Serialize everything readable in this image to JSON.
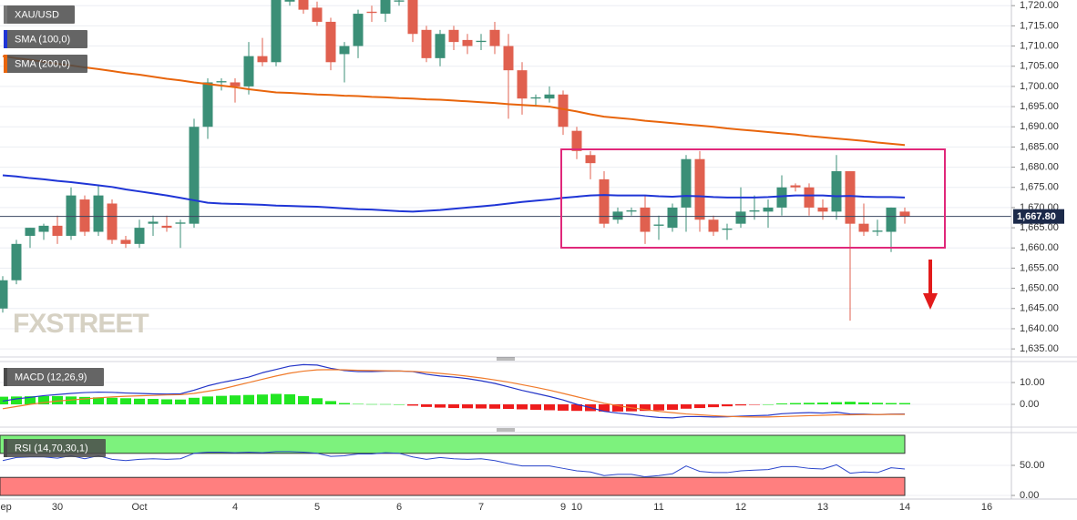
{
  "chart_data": [
    {
      "type": "candlestick",
      "watermark": "FXSTREET",
      "categories": [
        "Sep",
        null,
        null,
        null,
        "30",
        null,
        null,
        null,
        null,
        null,
        "Oct",
        null,
        null,
        null,
        null,
        null,
        null,
        "4",
        null,
        null,
        null,
        null,
        null,
        "5",
        null,
        null,
        null,
        null,
        null,
        "6",
        null,
        null,
        null,
        null,
        null,
        "7",
        null,
        null,
        null,
        null,
        null,
        "9",
        "10",
        null,
        null,
        null,
        null,
        null,
        "11",
        null,
        null,
        null,
        null,
        null,
        "12",
        null,
        null,
        null,
        null,
        null,
        "13",
        null,
        null,
        null,
        null,
        null,
        "14",
        null,
        null,
        null,
        null,
        null,
        "16"
      ],
      "ylim": [
        1633,
        1721.4
      ],
      "yticks": [
        {
          "value": 1635,
          "label": "1,635.00"
        },
        {
          "value": 1640,
          "label": "1,640.00"
        },
        {
          "value": 1645,
          "label": "1,645.00"
        },
        {
          "value": 1650,
          "label": "1,650.00"
        },
        {
          "value": 1655,
          "label": "1,655.00"
        },
        {
          "value": 1660,
          "label": "1,660.00"
        },
        {
          "value": 1665,
          "label": "1,665.00"
        },
        {
          "value": 1670,
          "label": "1,670.00"
        },
        {
          "value": 1675,
          "label": "1,675.00"
        },
        {
          "value": 1680,
          "label": "1,680.00"
        },
        {
          "value": 1685,
          "label": "1,685.00"
        },
        {
          "value": 1690,
          "label": "1,690.00"
        },
        {
          "value": 1695,
          "label": "1,695.00"
        },
        {
          "value": 1700,
          "label": "1,700.00"
        },
        {
          "value": 1705,
          "label": "1,705.00"
        },
        {
          "value": 1710,
          "label": "1,710.00"
        },
        {
          "value": 1715,
          "label": "1,715.00"
        },
        {
          "value": 1720,
          "label": "1,720.00"
        }
      ],
      "grid": true,
      "last_price": {
        "value": 1667.8,
        "label": "1,667.80"
      },
      "series": [
        {
          "name": "XAU/USD",
          "type": "candlestick",
          "color": "#777777",
          "up_color": "#3b8f77",
          "down_color": "#e0604f",
          "open": [
            1645,
            1652,
            1663,
            1664,
            1665.5,
            1663,
            1672,
            1664,
            1671,
            1662,
            1661,
            1666,
            1665.5,
            1666,
            1666,
            1690,
            1701,
            1701,
            1700,
            1707.5,
            1706,
            1721,
            1721.5,
            1719.5,
            1716,
            1708,
            1710,
            1718.5,
            1718,
            1721,
            1722,
            1714,
            1707,
            1714,
            1711.5,
            1711,
            1714,
            1710,
            1704,
            1697,
            1697,
            1698,
            1689,
            1683,
            1677,
            1667,
            1669,
            1670,
            1665.5,
            1665,
            1670,
            1682,
            1667,
            1664.5,
            1666,
            1669,
            1669,
            1670,
            1675.5,
            1675,
            1670,
            1669,
            1679,
            1666,
            1664,
            1664,
            1669,
            null,
            null,
            null,
            null,
            null,
            null
          ],
          "high": [
            1653,
            1662,
            1665,
            1666,
            1668,
            1675,
            1673,
            1675.5,
            1672,
            1663,
            1667,
            1668,
            1668,
            1667,
            1692,
            1702,
            1702,
            1702,
            1711,
            1712,
            1725,
            1723,
            1723,
            1721,
            1717,
            1711,
            1719,
            1720,
            1723,
            1722,
            1724,
            1715,
            1714,
            1715,
            1713,
            1713,
            1716,
            1713,
            1706,
            1698,
            1700,
            1699,
            1690,
            1684,
            1679,
            1670,
            1670,
            1673,
            1668,
            1671,
            1683,
            1684,
            1668,
            1666,
            1675,
            1673,
            1672,
            1678,
            1676,
            1676,
            1672,
            1683,
            1679,
            1671,
            1667,
            1670,
            1670,
            null,
            null,
            null,
            null,
            null,
            null
          ],
          "low": [
            1644,
            1651,
            1660,
            1662,
            1661,
            1662,
            1663,
            1663,
            1661,
            1660,
            1660,
            1663,
            1664,
            1660,
            1665,
            1687,
            1699,
            1696,
            1698,
            1705,
            1705,
            1720,
            1718,
            1715,
            1704,
            1701,
            1707,
            1716,
            1716,
            1720,
            1711,
            1706,
            1705,
            1709,
            1708,
            1709,
            1708,
            1692,
            1693,
            1695,
            1696,
            1688,
            1682,
            1677,
            1665,
            1666,
            1668,
            1661,
            1662,
            1664,
            1664,
            1664,
            1663,
            1662,
            1665,
            1667,
            1665,
            1668,
            1674,
            1668,
            1667,
            1667,
            1642,
            1663,
            1663,
            1659,
            1666,
            null,
            null,
            null,
            null,
            null,
            null
          ],
          "close": [
            1652,
            1661,
            1665,
            1665.5,
            1663,
            1673,
            1664,
            1673,
            1662,
            1661,
            1665,
            1666.5,
            1665,
            1666.3,
            1690,
            1701,
            1701.3,
            1700,
            1707.5,
            1706,
            1722,
            1721.5,
            1719,
            1716,
            1706,
            1710,
            1718,
            1718.2,
            1722,
            1721.3,
            1713,
            1707,
            1713,
            1711,
            1710,
            1711.3,
            1710,
            1704,
            1697,
            1697.3,
            1698,
            1690,
            1684,
            1681,
            1666,
            1669,
            1669.3,
            1664,
            1665.8,
            1670,
            1682,
            1667,
            1664,
            1664.8,
            1669,
            1669.3,
            1670,
            1675,
            1675,
            1670,
            1669,
            1679,
            1666,
            1664,
            1664.3,
            1670,
            1667.8,
            null,
            null,
            null,
            null,
            null,
            null
          ]
        },
        {
          "name": "SMA (100,0)",
          "type": "line",
          "color": "#1f35d6",
          "values": [
            1678.0,
            1677.7,
            1677.3,
            1677.0,
            1676.6,
            1676.3,
            1675.9,
            1675.5,
            1675.1,
            1674.5,
            1674.0,
            1673.5,
            1673.0,
            1672.4,
            1671.8,
            1671.2,
            1671.0,
            1670.9,
            1670.8,
            1670.7,
            1670.5,
            1670.4,
            1670.3,
            1670.2,
            1670.0,
            1669.8,
            1669.6,
            1669.5,
            1669.3,
            1669.1,
            1669.0,
            1669.2,
            1669.4,
            1669.7,
            1670.0,
            1670.3,
            1670.6,
            1671.0,
            1671.4,
            1671.7,
            1672.0,
            1672.4,
            1672.7,
            1673.0,
            1673.1,
            1673.0,
            1673.0,
            1673.0,
            1672.8,
            1672.7,
            1672.9,
            1672.8,
            1672.6,
            1672.5,
            1672.5,
            1672.5,
            1672.6,
            1672.8,
            1673.0,
            1673.0,
            1673.0,
            1672.8,
            1672.9,
            1672.7,
            1672.6,
            1672.6,
            1672.5,
            null,
            null,
            null,
            null,
            null,
            null
          ]
        },
        {
          "name": "SMA (200,0)",
          "type": "line",
          "color": "#e8650c",
          "values": [
            1707.5,
            1707.0,
            1706.6,
            1706.1,
            1705.6,
            1705.2,
            1704.7,
            1704.3,
            1703.8,
            1703.3,
            1702.9,
            1702.4,
            1701.9,
            1701.5,
            1701.0,
            1700.6,
            1700.2,
            1699.8,
            1699.3,
            1698.9,
            1698.5,
            1698.4,
            1698.2,
            1698.0,
            1697.9,
            1697.7,
            1697.6,
            1697.4,
            1697.3,
            1697.1,
            1697.0,
            1696.8,
            1696.7,
            1696.5,
            1696.3,
            1696.1,
            1695.9,
            1695.6,
            1695.4,
            1695.2,
            1695.0,
            1694.4,
            1693.8,
            1693.1,
            1692.5,
            1692.2,
            1691.9,
            1691.5,
            1691.2,
            1690.9,
            1690.6,
            1690.3,
            1690.0,
            1689.6,
            1689.3,
            1689.0,
            1688.7,
            1688.4,
            1688.1,
            1687.7,
            1687.4,
            1687.1,
            1686.8,
            1686.5,
            1686.1,
            1685.8,
            1685.5,
            null,
            null,
            null,
            null,
            null,
            null
          ]
        }
      ]
    },
    {
      "type": "macd",
      "title": "MACD (12,26,9)",
      "ylim": [
        -9.6,
        19.2
      ],
      "yticks": [
        {
          "value": 0,
          "label": "0.00"
        },
        {
          "value": 10,
          "label": "10.00"
        }
      ],
      "grid": true,
      "series": [
        {
          "type": "bar",
          "color": "#22e622",
          "negative_color": "#ee1c1c",
          "values": [
            3.5,
            3.6,
            3.7,
            3.8,
            3.8,
            3.6,
            3.4,
            3.2,
            3.0,
            2.8,
            2.6,
            2.5,
            2.3,
            2.2,
            3.0,
            3.6,
            3.9,
            4.1,
            4.3,
            4.5,
            4.8,
            4.6,
            3.8,
            2.8,
            1.5,
            0.6,
            0.2,
            0.1,
            0.1,
            0.0,
            -0.6,
            -1.2,
            -1.5,
            -1.7,
            -1.8,
            -1.9,
            -2.0,
            -2.1,
            -2.3,
            -2.5,
            -2.7,
            -2.9,
            -3.0,
            -3.1,
            -3.3,
            -3.3,
            -3.2,
            -3.0,
            -2.8,
            -2.5,
            -2.0,
            -1.7,
            -1.3,
            -0.9,
            -0.5,
            -0.2,
            0.0,
            0.4,
            0.6,
            0.7,
            0.8,
            1.0,
            1.2,
            0.9,
            0.7,
            0.6,
            0.6
          ]
        },
        {
          "type": "line",
          "color": "#2536c8",
          "values": [
            1.5,
            2.5,
            3.2,
            4.0,
            4.5,
            5.0,
            5.4,
            5.6,
            5.5,
            5.2,
            5.0,
            4.8,
            4.7,
            4.8,
            6.5,
            8.5,
            10.0,
            11.2,
            12.5,
            14.5,
            16.0,
            17.5,
            18.2,
            18.0,
            16.5,
            15.5,
            15.0,
            15.0,
            15.2,
            15.3,
            15.0,
            13.8,
            13.0,
            12.5,
            11.8,
            10.8,
            9.6,
            8.0,
            6.4,
            5.0,
            3.6,
            2.0,
            0.0,
            -1.5,
            -3.2,
            -4.0,
            -4.6,
            -5.4,
            -6.0,
            -6.2,
            -5.6,
            -5.6,
            -5.8,
            -5.7,
            -5.4,
            -5.2,
            -5.0,
            -4.3,
            -4.0,
            -3.8,
            -4.0,
            -3.6,
            -4.4,
            -4.5,
            -4.7,
            -4.5,
            -4.4
          ]
        },
        {
          "type": "line",
          "color": "#f07a2a",
          "values": [
            -2.0,
            -1.0,
            0,
            0.8,
            1.5,
            2.0,
            2.5,
            3.0,
            3.4,
            3.7,
            3.9,
            4.1,
            4.3,
            4.4,
            5.0,
            6.0,
            7.0,
            8.5,
            10.0,
            11.5,
            13.0,
            14.3,
            15.2,
            15.8,
            15.9,
            15.8,
            15.6,
            15.5,
            15.4,
            15.3,
            15.1,
            14.7,
            14.2,
            13.6,
            12.9,
            12.1,
            11.2,
            10.2,
            9.0,
            7.8,
            6.5,
            5.0,
            3.5,
            2.0,
            0.5,
            -0.6,
            -1.6,
            -2.4,
            -3.2,
            -3.8,
            -4.4,
            -4.8,
            -5.2,
            -5.5,
            -5.7,
            -5.8,
            -5.8,
            -5.6,
            -5.4,
            -5.2,
            -5.0,
            -4.8,
            -4.8,
            -4.7,
            -4.7,
            -4.6,
            -4.6
          ]
        }
      ]
    },
    {
      "type": "rsi",
      "title": "RSI (14,70,30,1)",
      "ylim": [
        -4.5,
        101.5
      ],
      "yticks": [
        {
          "value": 0,
          "label": "0.00"
        },
        {
          "value": 50,
          "label": "50.00"
        }
      ],
      "grid": true,
      "bands": [
        {
          "from": 70,
          "to": 100,
          "color": "#7df27d"
        },
        {
          "from": 0,
          "to": 30,
          "color": "#ff7f7f"
        }
      ],
      "series": [
        {
          "type": "line",
          "color": "#2b46cc",
          "values": [
            58,
            63,
            64,
            64,
            62,
            66,
            61,
            66,
            60,
            58,
            60,
            61,
            60,
            61,
            70,
            72,
            72,
            71,
            72,
            71,
            73,
            73,
            72,
            70,
            65,
            66,
            69,
            69,
            71,
            70,
            64,
            60,
            63,
            61,
            60,
            61,
            58,
            53,
            49,
            49,
            49,
            45,
            41,
            39,
            33,
            35,
            35,
            31,
            33,
            36,
            49,
            40,
            38,
            38,
            41,
            42,
            43,
            48,
            48,
            45,
            44,
            51,
            37,
            39,
            38,
            46,
            44
          ]
        }
      ]
    }
  ]
}
